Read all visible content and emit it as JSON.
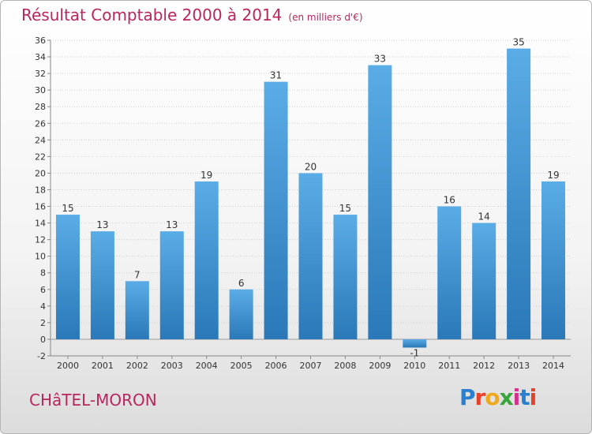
{
  "header": {
    "title": "Résultat Comptable 2000 à 2014",
    "unit": "(en milliers d'€)"
  },
  "commune": "CHâTEL-MORON",
  "logo": {
    "letters": [
      "P",
      "r",
      "o",
      "x",
      "i",
      "t",
      "i"
    ]
  },
  "colors": {
    "title": "#b8265e",
    "bar_light": "#5aace6",
    "bar_dark": "#2a78b8"
  },
  "chart_data": {
    "type": "bar",
    "categories": [
      "2000",
      "2001",
      "2002",
      "2003",
      "2004",
      "2005",
      "2006",
      "2007",
      "2008",
      "2009",
      "2010",
      "2011",
      "2012",
      "2013",
      "2014"
    ],
    "values": [
      15,
      13,
      7,
      13,
      19,
      6,
      31,
      20,
      15,
      33,
      -1,
      16,
      14,
      35,
      19
    ],
    "title": "Résultat Comptable 2000 à 2014",
    "ylim": [
      -2,
      36
    ],
    "yticks": [
      -2,
      0,
      2,
      4,
      6,
      8,
      10,
      12,
      14,
      16,
      18,
      20,
      22,
      24,
      26,
      28,
      30,
      32,
      34,
      36
    ],
    "grid": true
  }
}
